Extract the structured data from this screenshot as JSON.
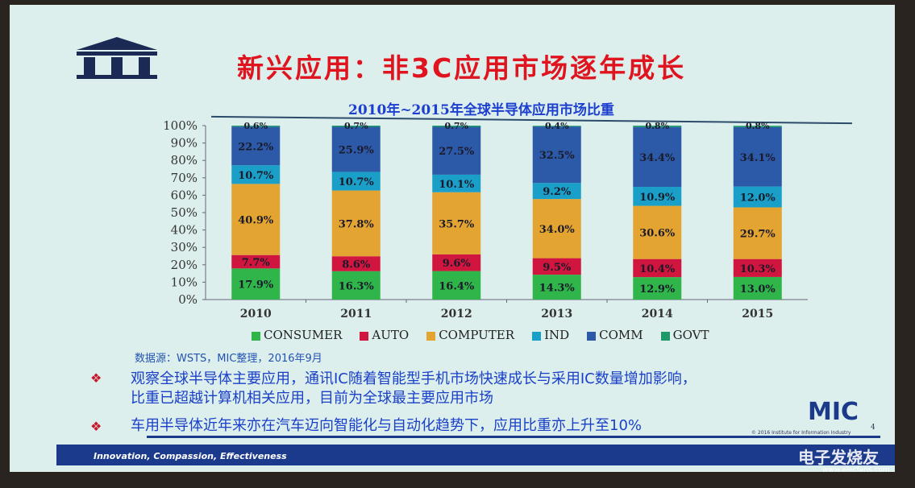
{
  "slide": {
    "title": "新兴应用：非3C应用市场逐年成长",
    "source": "数据源：WSTS，MIC整理，2016年9月",
    "bullets": [
      "观察全球半导体主要应用，通讯IC随着智能型手机市场快速成长与采用IC数量增加影响，",
      "比重已超越计算机相关应用，目前为全球最主要应用市场",
      "车用半导体近年来亦在汽车迈向智能化与自动化趋势下，应用比重亦上升至10%"
    ],
    "logo": "MIC",
    "copyright": "© 2016 Institute for Information Industry",
    "page_number": "4",
    "footer": "Innovation, Compassion, Effectiveness",
    "watermark": "电子发烧友",
    "watermark_url": "www.elecfans.com"
  },
  "chart_data": {
    "type": "bar",
    "stacked": true,
    "title": "2010年~2015年全球半导体应用市场比重",
    "categories": [
      "2010",
      "2011",
      "2012",
      "2013",
      "2014",
      "2015"
    ],
    "ylim": [
      0,
      100
    ],
    "yticks": [
      "0%",
      "10%",
      "20%",
      "30%",
      "40%",
      "50%",
      "60%",
      "70%",
      "80%",
      "90%",
      "100%"
    ],
    "legend_position": "bottom",
    "series": [
      {
        "name": "CONSUMER",
        "color": "#2fb54a",
        "values": [
          17.9,
          16.3,
          16.4,
          14.3,
          12.9,
          13.0
        ],
        "labels": [
          "17.9%",
          "16.3%",
          "16.4%",
          "14.3%",
          "12.9%",
          "13.0%"
        ]
      },
      {
        "name": "AUTO",
        "color": "#d0163e",
        "values": [
          7.7,
          8.6,
          9.6,
          9.5,
          10.4,
          10.3
        ],
        "labels": [
          "7.7%",
          "8.6%",
          "9.6%",
          "9.5%",
          "10.4%",
          "10.3%"
        ]
      },
      {
        "name": "COMPUTER",
        "color": "#e3a431",
        "values": [
          40.9,
          37.8,
          35.7,
          34.0,
          30.6,
          29.7
        ],
        "labels": [
          "40.9%",
          "37.8%",
          "35.7%",
          "34.0%",
          "30.6%",
          "29.7%"
        ]
      },
      {
        "name": "IND",
        "color": "#1aa0c8",
        "values": [
          10.7,
          10.7,
          10.1,
          9.2,
          10.9,
          12.0
        ],
        "labels": [
          "10.7%",
          "10.7%",
          "10.1%",
          "9.2%",
          "10.9%",
          "12.0%"
        ]
      },
      {
        "name": "COMM",
        "color": "#2d5aa8",
        "values": [
          22.2,
          25.9,
          27.5,
          32.5,
          34.4,
          34.1
        ],
        "labels": [
          "22.2%",
          "25.9%",
          "27.5%",
          "32.5%",
          "34.4%",
          "34.1%"
        ]
      },
      {
        "name": "GOVT",
        "color": "#1e9a6a",
        "values": [
          0.6,
          0.7,
          0.7,
          0.4,
          0.8,
          0.8
        ],
        "labels": [
          "0.6%",
          "0.7%",
          "0.7%",
          "0.4%",
          "0.8%",
          "0.8%"
        ]
      }
    ]
  }
}
